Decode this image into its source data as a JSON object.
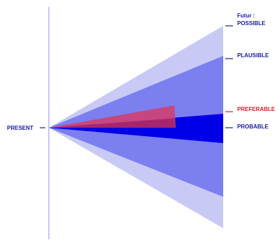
{
  "diagram": {
    "present_label": "PRESENT",
    "futur_label": "Futur :",
    "cones": [
      {
        "label": "POSSIBLE",
        "color": "#c8caf5"
      },
      {
        "label": "PLAUSIBLE",
        "color": "#7b7ff0"
      },
      {
        "label": "PROBABLE",
        "color": "#0000e6"
      },
      {
        "label": "PREFERABLE",
        "color": "#c0205a"
      }
    ],
    "colors": {
      "axis": "#b3b5f2",
      "label_text": "#1a1aa8",
      "preferable_text": "#e01e28"
    }
  }
}
